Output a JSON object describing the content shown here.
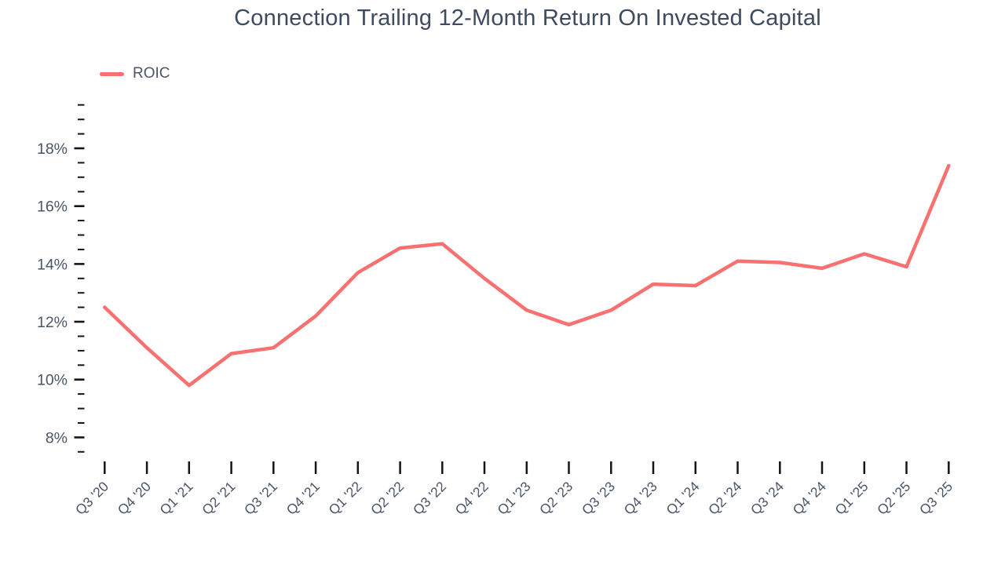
{
  "title": "Connection Trailing 12-Month Return On Invested Capital",
  "legend": {
    "label": "ROIC",
    "swatch_icon": "line-swatch-icon"
  },
  "colors": {
    "line": "#F87171",
    "title_text": "#3E4B5F",
    "axis_text": "#4A5568",
    "tick": "#151515",
    "background": "#FFFFFF"
  },
  "chart_data": {
    "type": "line",
    "title": "Connection Trailing 12-Month Return On Invested Capital",
    "categories": [
      "Q3 '20",
      "Q4 '20",
      "Q1 '21",
      "Q2 '21",
      "Q3 '21",
      "Q4 '21",
      "Q1 '22",
      "Q2 '22",
      "Q3 '22",
      "Q4 '22",
      "Q1 '23",
      "Q2 '23",
      "Q3 '23",
      "Q4 '23",
      "Q1 '24",
      "Q2 '24",
      "Q3 '24",
      "Q4 '24",
      "Q1 '25",
      "Q2 '25",
      "Q3 '25"
    ],
    "series": [
      {
        "name": "ROIC",
        "color": "#F87171",
        "values": [
          12.5,
          11.1,
          9.8,
          10.9,
          11.1,
          12.2,
          13.7,
          14.55,
          14.7,
          13.5,
          12.4,
          11.9,
          12.4,
          13.3,
          13.25,
          14.1,
          14.05,
          13.85,
          14.35,
          13.9,
          17.4
        ]
      }
    ],
    "xlabel": "",
    "ylabel": "",
    "y_axis": {
      "unit": "%",
      "labeled_ticks": [
        8,
        10,
        12,
        14,
        16,
        18
      ],
      "minor_tick_step": 0.5,
      "axis_min": 7.5,
      "axis_max": 19.5
    },
    "x_tick_label_rotation": -45,
    "grid": false,
    "legend_position": "top-left"
  }
}
